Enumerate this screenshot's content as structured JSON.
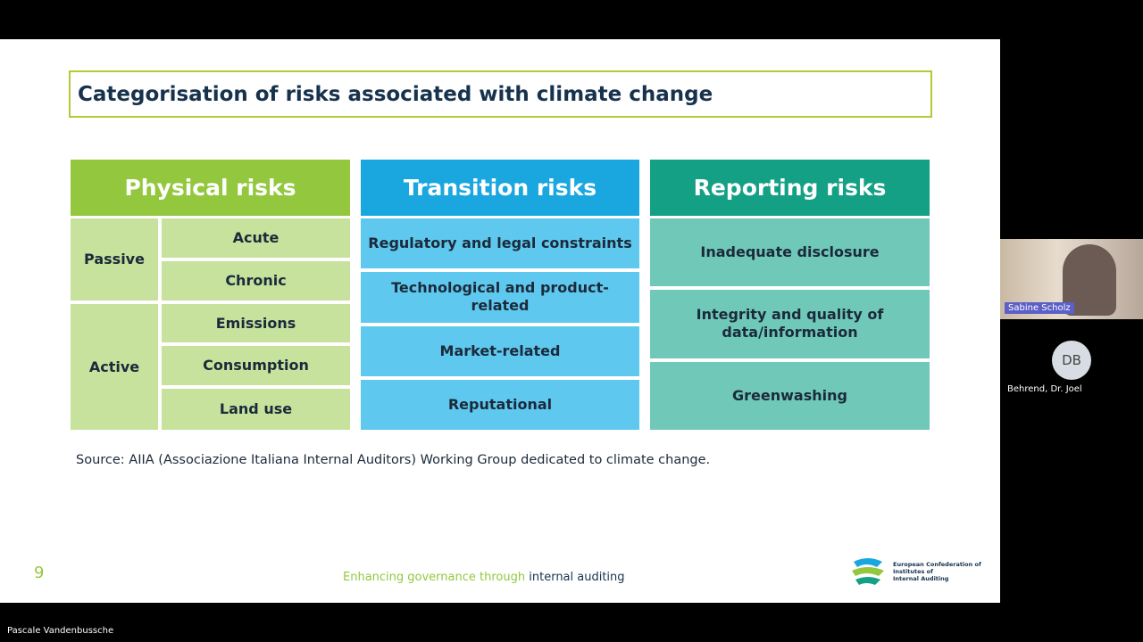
{
  "slide": {
    "title": "Categorisation of risks associated with climate change",
    "physical": {
      "header": "Physical risks",
      "groups": [
        {
          "label": "Passive",
          "items": [
            "Acute",
            "Chronic"
          ]
        },
        {
          "label": "Active",
          "items": [
            "Emissions",
            "Consumption",
            "Land use"
          ]
        }
      ]
    },
    "transition": {
      "header": "Transition risks",
      "items": [
        "Regulatory and legal constraints",
        "Technological and product-related",
        "Market-related",
        "Reputational"
      ]
    },
    "reporting": {
      "header": "Reporting risks",
      "items": [
        "Inadequate disclosure",
        "Integrity and quality of data/information",
        "Greenwashing"
      ]
    },
    "source": "Source: AIIA (Associazione Italiana Internal Auditors) Working Group dedicated to climate change.",
    "page_number": 9,
    "footer": {
      "tagline_green": "Enhancing governance through",
      "tagline_dark": "internal auditing"
    },
    "logo": {
      "lines": [
        "European Confederation of",
        "Institutes of",
        "Internal Auditing"
      ]
    }
  },
  "participants": [
    {
      "name": "Sabine Scholz"
    },
    {
      "initials": "DB",
      "name": "Behrend, Dr. Joel"
    }
  ],
  "presenter": "Pascale Vandenbussche"
}
